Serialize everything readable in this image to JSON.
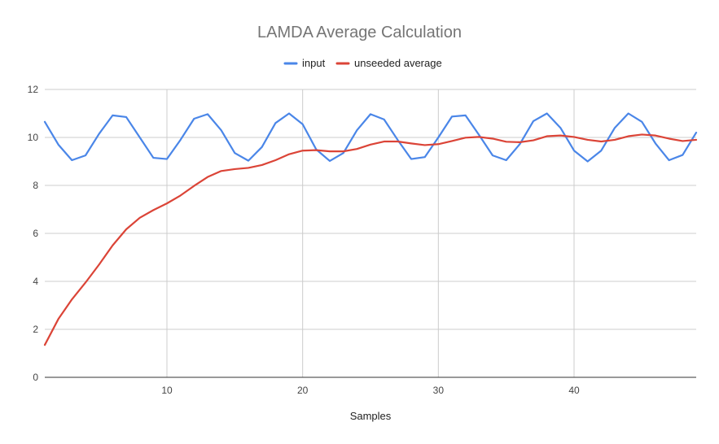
{
  "chart_data": {
    "type": "line",
    "title": "LAMDA Average Calculation",
    "xlabel": "Samples",
    "ylabel": "",
    "xlim": [
      1,
      49
    ],
    "ylim": [
      0,
      12
    ],
    "x_ticks": [
      10,
      20,
      30,
      40
    ],
    "y_ticks": [
      0,
      2,
      4,
      6,
      8,
      10,
      12
    ],
    "grid": true,
    "legend_position": "top",
    "x": [
      1,
      2,
      3,
      4,
      5,
      6,
      7,
      8,
      9,
      10,
      11,
      12,
      13,
      14,
      15,
      16,
      17,
      18,
      19,
      20,
      21,
      22,
      23,
      24,
      25,
      26,
      27,
      28,
      29,
      30,
      31,
      32,
      33,
      34,
      35,
      36,
      37,
      38,
      39,
      40,
      41,
      42,
      43,
      44,
      45,
      46,
      47,
      48,
      49
    ],
    "series": [
      {
        "name": "input",
        "color": "#4a86e8",
        "values": [
          10.65,
          9.7,
          9.05,
          9.25,
          10.15,
          10.92,
          10.85,
          10.0,
          9.15,
          9.1,
          9.9,
          10.78,
          10.97,
          10.3,
          9.35,
          9.03,
          9.6,
          10.6,
          11.0,
          10.55,
          9.5,
          9.02,
          9.35,
          10.3,
          10.97,
          10.75,
          9.9,
          9.1,
          9.18,
          10.0,
          10.87,
          10.92,
          10.1,
          9.25,
          9.05,
          9.72,
          10.68,
          11.0,
          10.4,
          9.45,
          9.0,
          9.45,
          10.4,
          11.0,
          10.65,
          9.75,
          9.05,
          9.27,
          10.2
        ]
      },
      {
        "name": "unseeded average",
        "color": "#db4437",
        "values": [
          1.35,
          2.43,
          3.25,
          3.95,
          4.7,
          5.5,
          6.17,
          6.65,
          6.97,
          7.25,
          7.58,
          7.98,
          8.35,
          8.6,
          8.68,
          8.73,
          8.85,
          9.05,
          9.3,
          9.45,
          9.47,
          9.42,
          9.42,
          9.52,
          9.7,
          9.83,
          9.83,
          9.75,
          9.68,
          9.72,
          9.85,
          9.99,
          10.02,
          9.95,
          9.82,
          9.8,
          9.88,
          10.05,
          10.08,
          10.02,
          9.9,
          9.83,
          9.9,
          10.05,
          10.12,
          10.08,
          9.95,
          9.85,
          9.9
        ]
      }
    ]
  }
}
